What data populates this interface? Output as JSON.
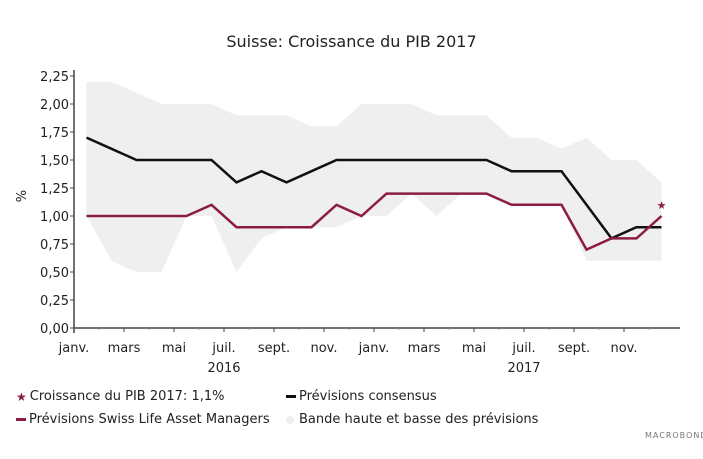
{
  "chart_data": {
    "type": "line",
    "title": "Suisse: Croissance du PIB 2017",
    "ylabel": "%",
    "xlabel": "",
    "ylim": [
      0,
      2.25
    ],
    "yticks": [
      "0,00",
      "0,25",
      "0,50",
      "0,75",
      "1,00",
      "1,25",
      "1,50",
      "1,75",
      "2,00",
      "2,25"
    ],
    "x": [
      "2016-01",
      "2016-02",
      "2016-03",
      "2016-04",
      "2016-05",
      "2016-06",
      "2016-07",
      "2016-08",
      "2016-09",
      "2016-10",
      "2016-11",
      "2016-12",
      "2017-01",
      "2017-02",
      "2017-03",
      "2017-04",
      "2017-05",
      "2017-06",
      "2017-07",
      "2017-08",
      "2017-09",
      "2017-10",
      "2017-11",
      "2017-12"
    ],
    "xtick_labels": [
      "janv.",
      "mars",
      "mai",
      "juil.",
      "sept.",
      "nov.",
      "janv.",
      "mars",
      "mai",
      "juil.",
      "sept.",
      "nov."
    ],
    "year_labels": [
      {
        "label": "2016",
        "under": "juil."
      },
      {
        "label": "2017",
        "under": "juil."
      }
    ],
    "series": [
      {
        "name": "Prévisions consensus",
        "color": "#111111",
        "values": [
          1.7,
          1.6,
          1.5,
          1.5,
          1.5,
          1.5,
          1.3,
          1.4,
          1.3,
          1.4,
          1.5,
          1.5,
          1.5,
          1.5,
          1.5,
          1.5,
          1.5,
          1.4,
          1.4,
          1.4,
          1.1,
          0.8,
          0.9,
          0.9
        ]
      },
      {
        "name": "Prévisions Swiss Life Asset Managers",
        "color": "#8c1d40",
        "values": [
          1.0,
          1.0,
          1.0,
          1.0,
          1.0,
          1.1,
          0.9,
          0.9,
          0.9,
          0.9,
          1.1,
          1.0,
          1.2,
          1.2,
          1.2,
          1.2,
          1.2,
          1.1,
          1.1,
          1.1,
          0.7,
          0.8,
          0.8,
          1.0
        ]
      }
    ],
    "band": {
      "name": "Bande haute et basse des prévisions",
      "color": "#efefef",
      "high": [
        2.2,
        2.2,
        2.1,
        2.0,
        2.0,
        2.0,
        1.9,
        1.9,
        1.9,
        1.8,
        1.8,
        2.0,
        2.0,
        2.0,
        1.9,
        1.9,
        1.9,
        1.7,
        1.7,
        1.6,
        1.7,
        1.5,
        1.5,
        1.3
      ],
      "low": [
        1.0,
        0.6,
        0.5,
        0.5,
        1.0,
        1.0,
        0.5,
        0.8,
        0.9,
        0.9,
        0.9,
        1.0,
        1.0,
        1.2,
        1.0,
        1.2,
        1.2,
        1.1,
        1.1,
        1.1,
        0.6,
        0.6,
        0.6,
        0.6
      ]
    },
    "marker": {
      "name": "Croissance du PIB 2017: 1,1%",
      "x": "2017-12",
      "value": 1.1,
      "color": "#8c1d40",
      "symbol": "star"
    },
    "grid": false,
    "legend": "bottom"
  },
  "brand": "MACROBOND"
}
